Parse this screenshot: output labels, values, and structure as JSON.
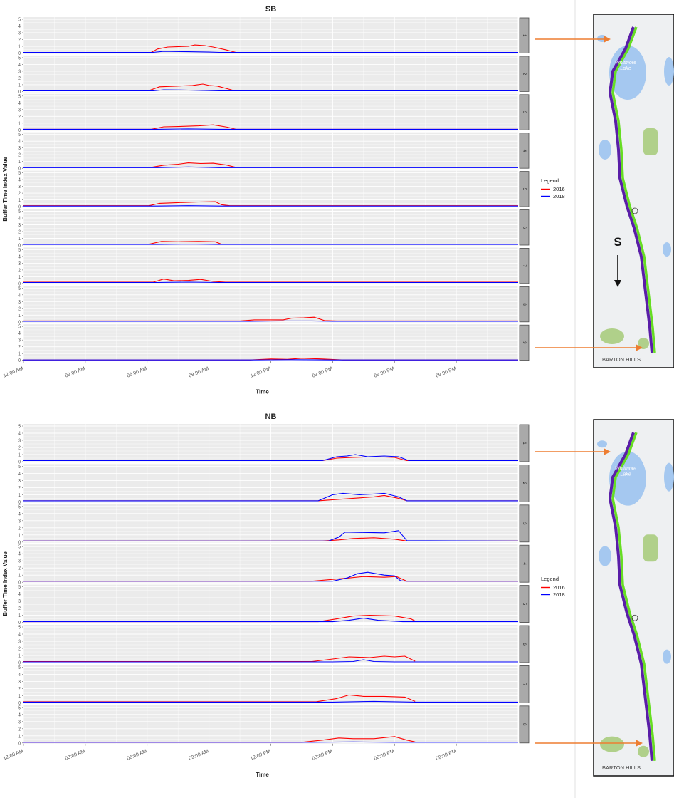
{
  "chart_data": [
    {
      "type": "line",
      "title": "SB",
      "xlabel": "Time",
      "ylabel": "Buffer Time Index Value",
      "x_ticks": [
        "12:00 AM",
        "03:00 AM",
        "06:00 AM",
        "09:00 AM",
        "12:00 PM",
        "03:00 PM",
        "06:00 PM",
        "09:00 PM"
      ],
      "xlim_hours": [
        0,
        24
      ],
      "ylim": [
        0,
        5
      ],
      "y_ticks": [
        0,
        1,
        2,
        3,
        4,
        5
      ],
      "grid": true,
      "legend": {
        "title": "Legend",
        "position": "right",
        "entries": [
          "2016",
          "2018"
        ]
      },
      "series_colors": {
        "2016": "#ff0000",
        "2018": "#0000ff"
      },
      "facets": [
        {
          "strip": "1",
          "series": [
            {
              "name": "2016",
              "x": [
                0,
                6.2,
                6.5,
                7,
                8,
                8.3,
                8.8,
                9.2,
                9.8,
                10.3,
                12,
                15,
                18,
                21,
                24
              ],
              "y": [
                0.1,
                0.1,
                0.6,
                0.9,
                1.0,
                1.2,
                1.1,
                0.9,
                0.5,
                0.1,
                0.1,
                0.1,
                0.1,
                0.1,
                0.1
              ]
            },
            {
              "name": "2018",
              "x": [
                0,
                6.3,
                6.8,
                8,
                9,
                9.5,
                12,
                24
              ],
              "y": [
                0.1,
                0.1,
                0.25,
                0.2,
                0.15,
                0.1,
                0.1,
                0.1
              ]
            }
          ]
        },
        {
          "strip": "2",
          "series": [
            {
              "name": "2016",
              "x": [
                0,
                6.1,
                6.6,
                7.5,
                8.2,
                8.7,
                9.0,
                9.4,
                9.9,
                10.2,
                12,
                24
              ],
              "y": [
                0.15,
                0.15,
                0.7,
                0.8,
                0.9,
                1.1,
                0.9,
                0.8,
                0.4,
                0.15,
                0.15,
                0.15
              ]
            },
            {
              "name": "2018",
              "x": [
                0,
                6.3,
                6.8,
                8,
                9.5,
                24
              ],
              "y": [
                0.1,
                0.1,
                0.25,
                0.2,
                0.1,
                0.1
              ]
            }
          ]
        },
        {
          "strip": "3",
          "series": [
            {
              "name": "2016",
              "x": [
                0,
                6.2,
                6.8,
                7.5,
                8.5,
                9.2,
                9.9,
                10.3,
                12,
                24
              ],
              "y": [
                0.1,
                0.1,
                0.45,
                0.5,
                0.6,
                0.75,
                0.4,
                0.1,
                0.1,
                0.1
              ]
            },
            {
              "name": "2018",
              "x": [
                0,
                6.5,
                8,
                9.5,
                24
              ],
              "y": [
                0.1,
                0.1,
                0.15,
                0.1,
                0.1
              ]
            }
          ]
        },
        {
          "strip": "4",
          "series": [
            {
              "name": "2016",
              "x": [
                0,
                6.2,
                6.8,
                7.5,
                8.0,
                8.6,
                9.2,
                9.8,
                10.3,
                12,
                24
              ],
              "y": [
                0.15,
                0.15,
                0.45,
                0.6,
                0.8,
                0.7,
                0.75,
                0.5,
                0.15,
                0.15,
                0.15
              ]
            },
            {
              "name": "2018",
              "x": [
                0,
                6.5,
                8,
                9.5,
                24
              ],
              "y": [
                0.1,
                0.1,
                0.2,
                0.1,
                0.1
              ]
            }
          ]
        },
        {
          "strip": "5",
          "series": [
            {
              "name": "2016",
              "x": [
                0,
                6.1,
                6.6,
                7.5,
                8.5,
                9.3,
                9.6,
                10.0,
                12,
                24
              ],
              "y": [
                0.15,
                0.15,
                0.5,
                0.6,
                0.7,
                0.75,
                0.3,
                0.15,
                0.15,
                0.15
              ]
            },
            {
              "name": "2018",
              "x": [
                0,
                6.5,
                8,
                9.5,
                24
              ],
              "y": [
                0.1,
                0.1,
                0.15,
                0.1,
                0.1
              ]
            }
          ]
        },
        {
          "strip": "6",
          "series": [
            {
              "name": "2016",
              "x": [
                0,
                6.1,
                6.7,
                7.5,
                8.5,
                9.3,
                9.6,
                12,
                24
              ],
              "y": [
                0.15,
                0.15,
                0.55,
                0.5,
                0.55,
                0.5,
                0.15,
                0.15,
                0.15
              ]
            },
            {
              "name": "2018",
              "x": [
                0,
                6.5,
                8,
                9.5,
                24
              ],
              "y": [
                0.1,
                0.1,
                0.15,
                0.1,
                0.1
              ]
            }
          ]
        },
        {
          "strip": "7",
          "series": [
            {
              "name": "2016",
              "x": [
                0,
                6.3,
                6.8,
                7.3,
                8.0,
                8.6,
                9.2,
                9.8,
                12,
                24
              ],
              "y": [
                0.2,
                0.2,
                0.65,
                0.4,
                0.45,
                0.6,
                0.3,
                0.2,
                0.2,
                0.2
              ]
            },
            {
              "name": "2018",
              "x": [
                0,
                6.5,
                8,
                9.5,
                24
              ],
              "y": [
                0.15,
                0.15,
                0.2,
                0.15,
                0.15
              ]
            }
          ]
        },
        {
          "strip": "8",
          "series": [
            {
              "name": "2016",
              "x": [
                0,
                10.5,
                11.2,
                12,
                12.6,
                13.0,
                13.6,
                14.1,
                14.6,
                15.2,
                24
              ],
              "y": [
                0.15,
                0.15,
                0.3,
                0.3,
                0.3,
                0.55,
                0.6,
                0.7,
                0.2,
                0.15,
                0.15
              ]
            },
            {
              "name": "2018",
              "x": [
                0,
                11,
                12.5,
                14,
                15,
                24
              ],
              "y": [
                0.1,
                0.1,
                0.15,
                0.15,
                0.1,
                0.1
              ]
            }
          ]
        },
        {
          "strip": "9",
          "series": [
            {
              "name": "2016",
              "x": [
                0,
                11.0,
                12.0,
                12.8,
                13.5,
                14.5,
                15.5,
                24
              ],
              "y": [
                0.05,
                0.05,
                0.2,
                0.15,
                0.3,
                0.2,
                0.05,
                0.05
              ]
            },
            {
              "name": "2018",
              "x": [
                0,
                11,
                13,
                15,
                24
              ],
              "y": [
                0.05,
                0.05,
                0.1,
                0.05,
                0.05
              ]
            }
          ]
        }
      ]
    },
    {
      "type": "line",
      "title": "NB",
      "xlabel": "Time",
      "ylabel": "Buffer Time Index Value",
      "x_ticks": [
        "12:00 AM",
        "03:00 AM",
        "06:00 AM",
        "09:00 AM",
        "12:00 PM",
        "03:00 PM",
        "06:00 PM",
        "09:00 PM"
      ],
      "xlim_hours": [
        0,
        24
      ],
      "ylim": [
        0,
        5
      ],
      "y_ticks": [
        0,
        1,
        2,
        3,
        4,
        5
      ],
      "grid": true,
      "legend": {
        "title": "Legend",
        "position": "right",
        "entries": [
          "2016",
          "2018"
        ]
      },
      "series_colors": {
        "2016": "#ff0000",
        "2018": "#0000ff"
      },
      "facets": [
        {
          "strip": "1",
          "series": [
            {
              "name": "2016",
              "x": [
                0,
                14.5,
                15.2,
                16,
                17,
                18,
                18.6,
                24
              ],
              "y": [
                0.15,
                0.15,
                0.5,
                0.6,
                0.7,
                0.6,
                0.15,
                0.15
              ]
            },
            {
              "name": "2018",
              "x": [
                0,
                14.5,
                15.2,
                15.7,
                16.1,
                16.7,
                17.5,
                18.2,
                18.7,
                24
              ],
              "y": [
                0.15,
                0.15,
                0.7,
                0.8,
                1.0,
                0.7,
                0.8,
                0.7,
                0.15,
                0.15
              ]
            }
          ]
        },
        {
          "strip": "2",
          "series": [
            {
              "name": "2016",
              "x": [
                0,
                14.3,
                15.0,
                16,
                17,
                17.5,
                18.2,
                18.6,
                24
              ],
              "y": [
                0.15,
                0.15,
                0.3,
                0.5,
                0.7,
                0.9,
                0.5,
                0.15,
                0.15
              ]
            },
            {
              "name": "2018",
              "x": [
                0,
                14.3,
                15.0,
                15.5,
                16.3,
                17,
                17.5,
                18.2,
                18.6,
                24
              ],
              "y": [
                0.15,
                0.15,
                1.0,
                1.2,
                1.0,
                1.1,
                1.2,
                0.7,
                0.15,
                0.15
              ]
            }
          ]
        },
        {
          "strip": "3",
          "series": [
            {
              "name": "2016",
              "x": [
                0,
                14.5,
                15.3,
                16,
                17,
                18,
                18.6,
                24
              ],
              "y": [
                0.15,
                0.15,
                0.3,
                0.5,
                0.6,
                0.4,
                0.15,
                0.15
              ]
            },
            {
              "name": "2018",
              "x": [
                0,
                14.8,
                15.3,
                15.6,
                16.5,
                17.5,
                18.2,
                18.6,
                24
              ],
              "y": [
                0.15,
                0.15,
                0.7,
                1.4,
                1.35,
                1.3,
                1.6,
                0.2,
                0.15
              ]
            }
          ]
        },
        {
          "strip": "4",
          "series": [
            {
              "name": "2016",
              "x": [
                0,
                14.0,
                15.0,
                15.8,
                16.5,
                17.5,
                18.1,
                18.6,
                24
              ],
              "y": [
                0.15,
                0.15,
                0.4,
                0.6,
                0.8,
                0.7,
                0.8,
                0.15,
                0.15
              ]
            },
            {
              "name": "2018",
              "x": [
                0,
                15.0,
                15.7,
                16.2,
                16.7,
                17.5,
                18.0,
                18.3,
                18.6,
                24
              ],
              "y": [
                0.15,
                0.15,
                0.6,
                1.2,
                1.4,
                1.0,
                0.9,
                0.2,
                0.15,
                0.15
              ]
            }
          ]
        },
        {
          "strip": "5",
          "series": [
            {
              "name": "2016",
              "x": [
                0,
                14.3,
                15.2,
                16,
                16.8,
                18,
                18.8,
                19.0
              ],
              "y": [
                0.1,
                0.1,
                0.5,
                0.9,
                1.0,
                0.9,
                0.5,
                0.2
              ]
            },
            {
              "name": "2018",
              "x": [
                0,
                15.0,
                15.8,
                16.5,
                17.2,
                17.8,
                18.4,
                24
              ],
              "y": [
                0.1,
                0.1,
                0.3,
                0.6,
                0.3,
                0.2,
                0.1,
                0.1
              ]
            }
          ]
        },
        {
          "strip": "6",
          "series": [
            {
              "name": "2016",
              "x": [
                0,
                14.0,
                15.0,
                15.8,
                16.8,
                17.5,
                18.0,
                18.5,
                19.0
              ],
              "y": [
                0.15,
                0.15,
                0.5,
                0.8,
                0.7,
                0.9,
                0.8,
                0.9,
                0.2
              ]
            },
            {
              "name": "2018",
              "x": [
                0,
                15.0,
                16,
                16.5,
                17,
                18,
                24
              ],
              "y": [
                0.1,
                0.1,
                0.15,
                0.4,
                0.15,
                0.1,
                0.1
              ]
            }
          ]
        },
        {
          "strip": "7",
          "series": [
            {
              "name": "2016",
              "x": [
                0,
                14.2,
                15.2,
                15.8,
                16.5,
                17.5,
                18.5,
                19.0
              ],
              "y": [
                0.15,
                0.15,
                0.6,
                1.1,
                0.9,
                0.9,
                0.8,
                0.2
              ]
            },
            {
              "name": "2018",
              "x": [
                0,
                15,
                17,
                19,
                24
              ],
              "y": [
                0.1,
                0.1,
                0.2,
                0.1,
                0.1
              ]
            }
          ]
        },
        {
          "strip": "8",
          "series": [
            {
              "name": "2016",
              "x": [
                0,
                13.5,
                14.5,
                15.3,
                16,
                17,
                18,
                18.6,
                19.0
              ],
              "y": [
                0.1,
                0.1,
                0.4,
                0.7,
                0.6,
                0.6,
                0.9,
                0.4,
                0.15
              ]
            },
            {
              "name": "2018",
              "x": [
                0,
                14,
                16,
                18,
                24
              ],
              "y": [
                0.1,
                0.1,
                0.15,
                0.1,
                0.1
              ]
            }
          ]
        }
      ]
    }
  ],
  "maps": [
    {
      "place_label": "Whitmore Lake",
      "bottom_label": "BARTON HILLS",
      "direction_label": "S"
    },
    {
      "place_label": "Whitmore Lake",
      "bottom_label": "BARTON HILLS"
    }
  ]
}
